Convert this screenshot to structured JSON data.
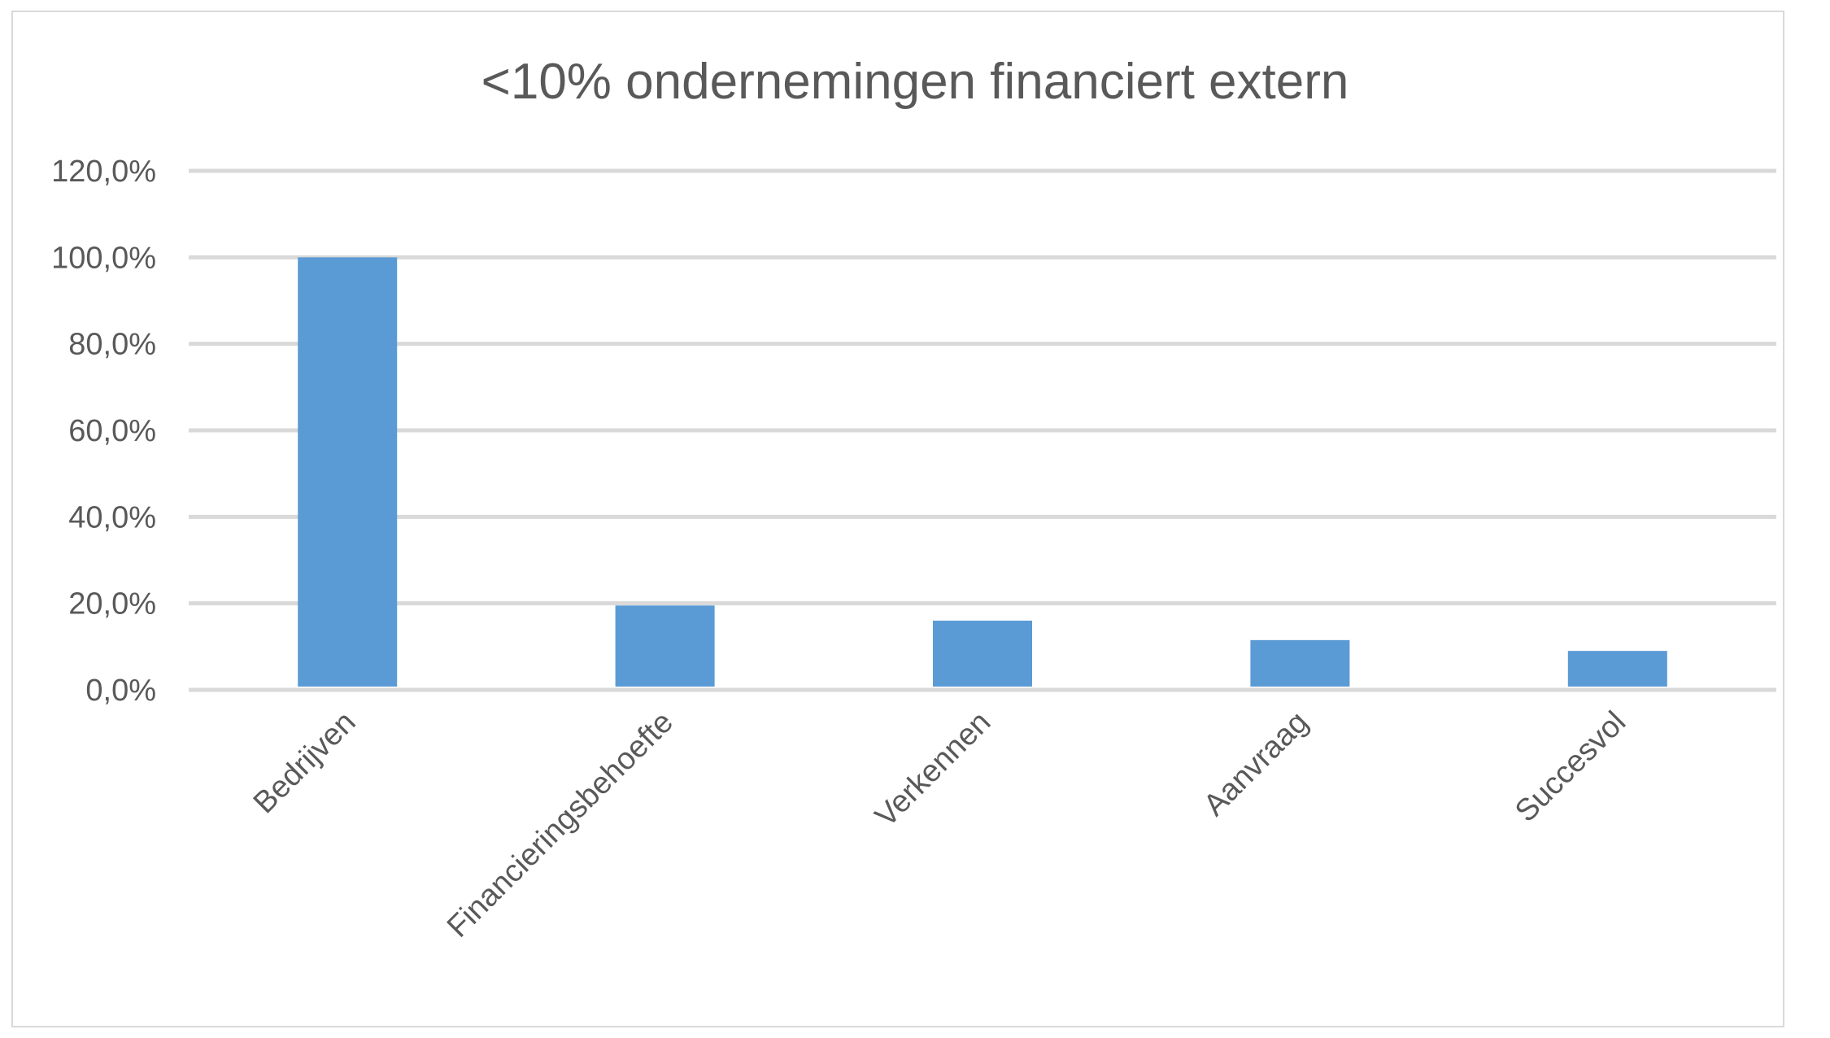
{
  "chart_data": {
    "type": "bar",
    "title": "<10% ondernemingen financiert extern",
    "categories": [
      "Bedrijven",
      "Financieringsbehoefte",
      "Verkennen",
      "Aanvraag",
      "Succesvol"
    ],
    "values": [
      100.0,
      19.5,
      16.0,
      11.5,
      9.0
    ],
    "xlabel": "",
    "ylabel": "",
    "ylim": [
      0,
      120
    ],
    "yticks": [
      "0,0%",
      "20,0%",
      "40,0%",
      "60,0%",
      "80,0%",
      "100,0%",
      "120,0%"
    ],
    "grid": true,
    "legend": "none",
    "colors": {
      "bar": "#5b9bd5",
      "grid": "#d9d9d9",
      "text": "#595959"
    }
  }
}
